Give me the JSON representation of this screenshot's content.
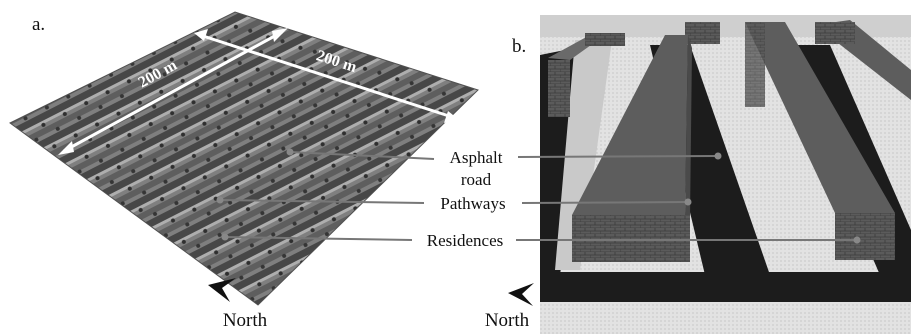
{
  "panels": [
    {
      "label": "a.",
      "scale_labels": [
        "200 m",
        "200 m"
      ],
      "north": "North"
    },
    {
      "label": "b.",
      "north": "North"
    }
  ],
  "callouts": [
    {
      "lines": [
        "Asphalt",
        "road"
      ]
    },
    {
      "lines": [
        "Pathways"
      ]
    },
    {
      "lines": [
        "Residences"
      ]
    }
  ]
}
